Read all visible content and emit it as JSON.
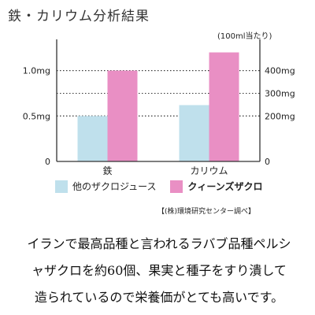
{
  "title": "鉄・カリウム分析結果",
  "unit_note": "(100ml当たり)",
  "legend": {
    "other": "他のザクロジュース",
    "queens": "クィーンズザクロ"
  },
  "source": "【(株)環境研究センター調べ】",
  "caption_lines": [
    "イランで最高品種と言われるラバブ品種ペルシ",
    "ャザクロを約60個、果実と種子をすり潰して",
    "造られているので栄養価がとても高いです。"
  ],
  "colors": {
    "other": "#bfe0ec",
    "queens": "#e98fc4",
    "axis": "#333333",
    "grid": "#333333"
  },
  "chart_data": {
    "type": "bar",
    "categories": [
      "鉄",
      "カリウム"
    ],
    "series": [
      {
        "name": "他のザクロジュース",
        "values": [
          0.5,
          0.62
        ],
        "axis": "left"
      },
      {
        "name": "クィーンズザクロ",
        "values": [
          1.0,
          1.2
        ],
        "axis": "left"
      }
    ],
    "left_axis": {
      "ticks": [
        "0",
        "0.5mg",
        "1.0mg"
      ],
      "tick_values": [
        0,
        0.5,
        1.0
      ],
      "ylim": [
        0,
        1.3
      ]
    },
    "right_axis": {
      "ticks": [
        "0",
        "200mg",
        "300mg",
        "400mg"
      ],
      "tick_values": [
        0,
        200,
        300,
        400
      ],
      "ylim": [
        0,
        520
      ]
    },
    "grid": true
  }
}
